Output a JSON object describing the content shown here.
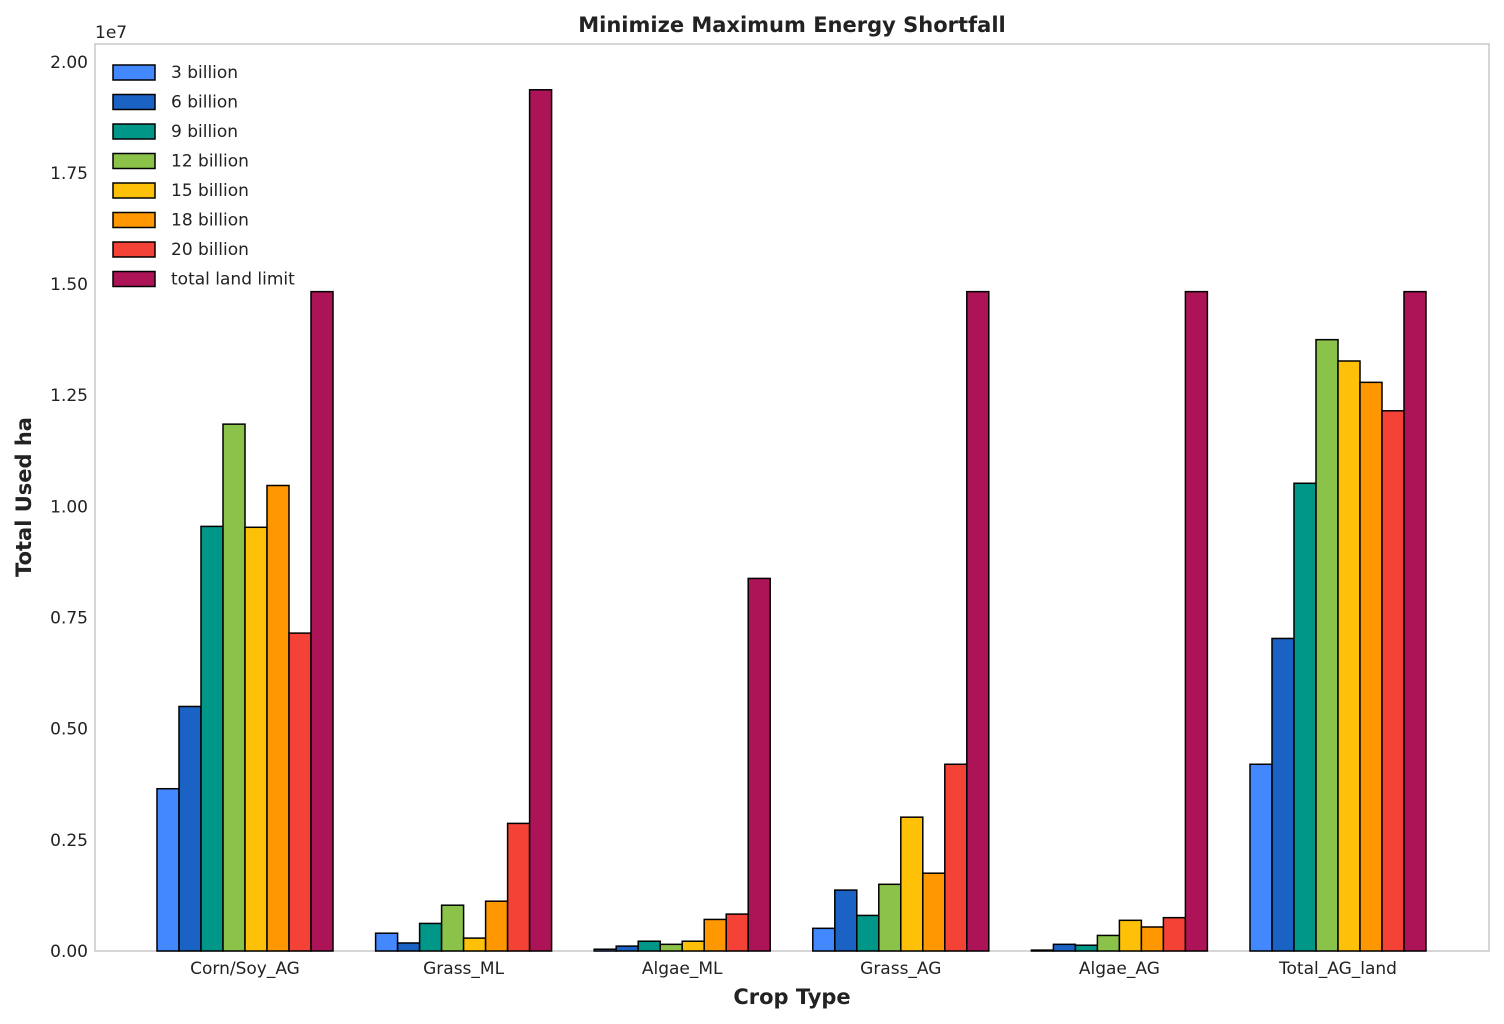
{
  "chart_data": {
    "type": "bar",
    "title": "Minimize Maximum Energy Shortfall",
    "xlabel": "Crop Type",
    "ylabel": "Total Used ha",
    "y_offset_text": "1e7",
    "ylim": [
      0,
      20400000
    ],
    "yticks": [
      0,
      2500000,
      5000000,
      7500000,
      10000000,
      12500000,
      15000000,
      17500000,
      20000000
    ],
    "ytick_labels": [
      "0.00",
      "0.25",
      "0.50",
      "0.75",
      "1.00",
      "1.25",
      "1.50",
      "1.75",
      "2.00"
    ],
    "grid": false,
    "legend_position": "top-left",
    "categories": [
      "Corn/Soy_AG",
      "Grass_ML",
      "Algae_ML",
      "Grass_AG",
      "Algae_AG",
      "Total_AG_land"
    ],
    "series": [
      {
        "name": "3 billion",
        "color": "#4488ff",
        "values": [
          3650000,
          400000,
          40000,
          510000,
          20000,
          4200000
        ]
      },
      {
        "name": "6 billion",
        "color": "#1a63c4",
        "values": [
          5500000,
          180000,
          110000,
          1370000,
          150000,
          7030000
        ]
      },
      {
        "name": "9 billion",
        "color": "#009688",
        "values": [
          9550000,
          620000,
          220000,
          800000,
          130000,
          10520000
        ]
      },
      {
        "name": "12 billion",
        "color": "#8bc34a",
        "values": [
          11850000,
          1030000,
          150000,
          1500000,
          350000,
          13750000
        ]
      },
      {
        "name": "15 billion",
        "color": "#ffc107",
        "values": [
          9530000,
          290000,
          220000,
          3010000,
          690000,
          13270000
        ]
      },
      {
        "name": "18 billion",
        "color": "#ff9800",
        "values": [
          10470000,
          1120000,
          710000,
          1750000,
          540000,
          12790000
        ]
      },
      {
        "name": "20 billion",
        "color": "#f44336",
        "values": [
          7150000,
          2870000,
          830000,
          4200000,
          750000,
          12150000
        ]
      },
      {
        "name": "total land limit",
        "color": "#ad1457",
        "values": [
          14830000,
          19370000,
          8380000,
          14830000,
          14830000,
          14830000
        ]
      }
    ]
  }
}
